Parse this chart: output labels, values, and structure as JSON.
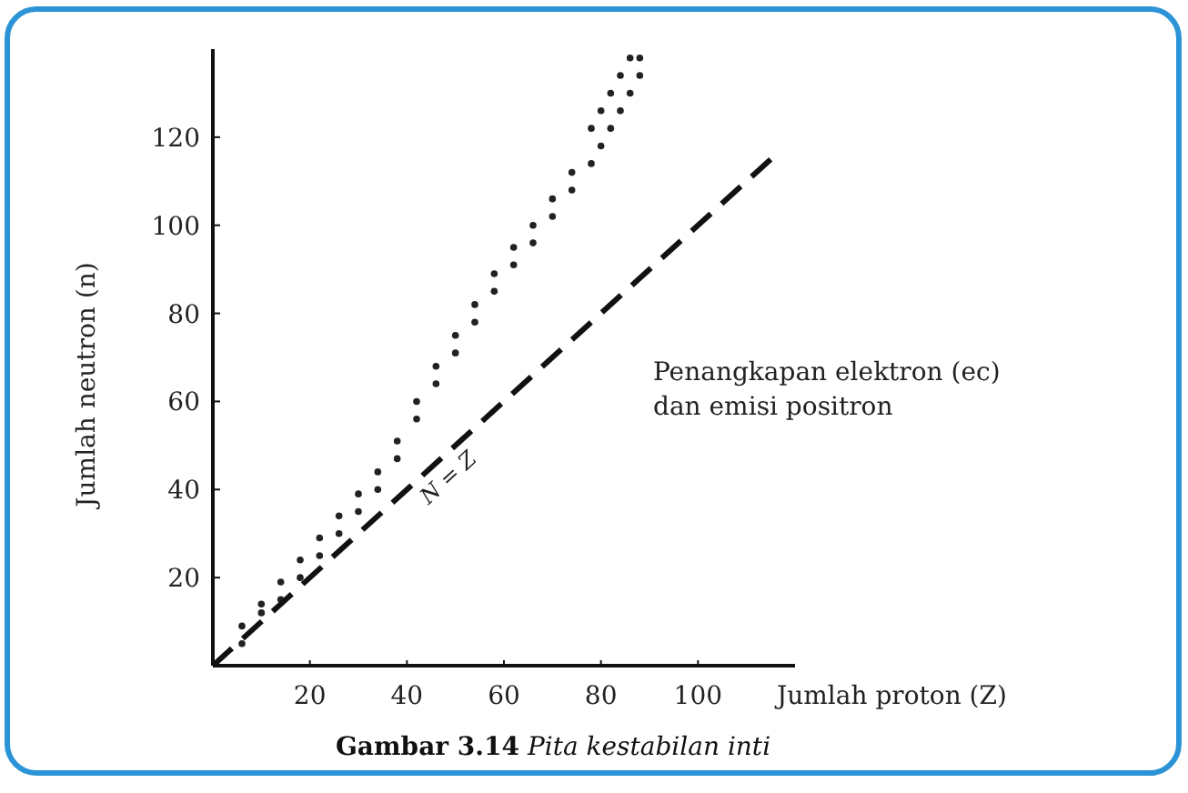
{
  "chart_data": {
    "type": "scatter",
    "title": "Gambar 3.14 Pita kestabilan inti",
    "xlabel": "Jumlah proton (Z)",
    "ylabel": "Jumlah neutron (n)",
    "xlim": [
      0,
      120
    ],
    "ylim": [
      0,
      140
    ],
    "xticks": [
      20,
      40,
      60,
      80,
      100
    ],
    "yticks": [
      20,
      40,
      60,
      80,
      100,
      120
    ],
    "grid": false,
    "marker": "circle",
    "annotations": [
      {
        "text": "Penangkapan elektron (ec)\ndan emisi positron"
      }
    ],
    "series": [
      {
        "color": "#222222",
        "x": [
          6,
          6,
          10,
          10,
          14,
          14,
          18,
          18,
          22,
          22,
          26,
          26,
          30,
          30,
          34,
          34,
          38,
          38,
          42,
          42,
          46,
          46,
          50,
          50,
          54,
          54,
          58,
          58,
          62,
          62,
          66,
          66,
          70,
          70,
          74,
          74,
          78,
          78,
          80,
          80,
          82,
          82,
          84,
          84,
          86,
          86,
          88,
          88
        ],
        "values": [
          5,
          9,
          12,
          14,
          15,
          19,
          20,
          24,
          25,
          29,
          30,
          34,
          35,
          39,
          40,
          44,
          47,
          51,
          56,
          60,
          64,
          68,
          71,
          75,
          78,
          82,
          85,
          89,
          91,
          95,
          96,
          100,
          102,
          106,
          108,
          112,
          114,
          122,
          118,
          126,
          122,
          130,
          126,
          134,
          130,
          138,
          134,
          138
        ]
      },
      {
        "type": "line",
        "name": "N = Z",
        "color": "#111111",
        "line_style": "dashed",
        "marker": "none",
        "x": [
          0,
          115
        ],
        "values": [
          0,
          115
        ]
      }
    ]
  }
}
